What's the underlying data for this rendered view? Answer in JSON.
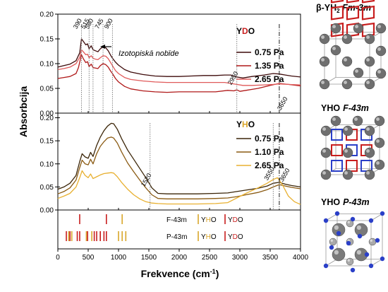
{
  "chart_data": {
    "type": "line",
    "xlabel_main": "Frekvence (cm",
    "xlabel_sup": "-1",
    "xlabel_close": ")",
    "ylabel": "Absorbcija",
    "xlim": [
      0,
      4000
    ],
    "x_ticks": [
      0,
      500,
      1000,
      1500,
      2000,
      2500,
      3000,
      3500,
      4000
    ],
    "top": {
      "ylim": [
        0,
        0.2
      ],
      "y_ticks": [
        "0.00",
        "0.05",
        "0.10",
        "0.15",
        "0.20"
      ],
      "legend_title": {
        "y": "Y",
        "d": "D",
        "o": "O"
      },
      "series": [
        {
          "name": "0.75 Pa",
          "color": "#3d0a0a",
          "x": [
            0,
            100,
            200,
            300,
            360,
            390,
            420,
            460,
            490,
            515,
            550,
            580,
            620,
            660,
            700,
            745,
            790,
            830,
            870,
            900,
            950,
            1000,
            1100,
            1200,
            1400,
            1600,
            1800,
            2000,
            2200,
            2400,
            2600,
            2750,
            2850,
            2950,
            3050,
            3200,
            3400,
            3550,
            3650,
            3750,
            3850,
            4000
          ],
          "y": [
            0.093,
            0.096,
            0.099,
            0.106,
            0.122,
            0.15,
            0.145,
            0.138,
            0.14,
            0.13,
            0.136,
            0.128,
            0.126,
            0.124,
            0.13,
            0.134,
            0.132,
            0.126,
            0.117,
            0.111,
            0.103,
            0.097,
            0.088,
            0.083,
            0.078,
            0.075,
            0.074,
            0.074,
            0.075,
            0.076,
            0.076,
            0.077,
            0.077,
            0.073,
            0.071,
            0.074,
            0.077,
            0.08,
            0.079,
            0.077,
            0.075,
            0.073
          ]
        },
        {
          "name": "1.35 Pa",
          "color": "#b01818",
          "x": [
            0,
            100,
            200,
            300,
            340,
            390,
            420,
            460,
            490,
            515,
            550,
            580,
            620,
            660,
            700,
            745,
            790,
            830,
            870,
            900,
            950,
            1000,
            1100,
            1200,
            1400,
            1600,
            1800,
            2000,
            2200,
            2400,
            2600,
            2800,
            2900,
            2950,
            3000,
            3100,
            3300,
            3500,
            3650,
            3800,
            4000
          ],
          "y": [
            0.07,
            0.072,
            0.074,
            0.08,
            0.092,
            0.118,
            0.11,
            0.102,
            0.104,
            0.094,
            0.099,
            0.092,
            0.091,
            0.09,
            0.096,
            0.1,
            0.098,
            0.093,
            0.085,
            0.08,
            0.07,
            0.063,
            0.054,
            0.049,
            0.045,
            0.043,
            0.042,
            0.043,
            0.043,
            0.043,
            0.043,
            0.046,
            0.045,
            0.047,
            0.044,
            0.046,
            0.05,
            0.056,
            0.06,
            0.058,
            0.055
          ]
        },
        {
          "name": "2.65 Pa",
          "color": "#e05a5a",
          "x": [
            0,
            100,
            200,
            300,
            360,
            390,
            420,
            460,
            490,
            515,
            550,
            580,
            620,
            660,
            700,
            745,
            790,
            830,
            870,
            900,
            950,
            1000,
            1100,
            1200,
            1400,
            1600,
            1800,
            2000,
            2200,
            2400,
            2600,
            2750,
            2850,
            2950,
            3050,
            3200,
            3400,
            3550,
            3650,
            3800,
            4000
          ],
          "y": [
            0.088,
            0.09,
            0.093,
            0.1,
            0.113,
            0.128,
            0.124,
            0.118,
            0.119,
            0.112,
            0.116,
            0.111,
            0.109,
            0.108,
            0.112,
            0.116,
            0.115,
            0.11,
            0.102,
            0.096,
            0.086,
            0.08,
            0.072,
            0.068,
            0.065,
            0.063,
            0.062,
            0.062,
            0.062,
            0.062,
            0.062,
            0.062,
            0.06,
            0.058,
            0.056,
            0.056,
            0.057,
            0.058,
            0.059,
            0.058,
            0.057
          ]
        }
      ],
      "peak_labels": [
        {
          "x": 390,
          "text": "390"
        },
        {
          "x": 515,
          "text": "515"
        },
        {
          "x": 580,
          "text": "580"
        },
        {
          "x": 745,
          "text": "745"
        },
        {
          "x": 900,
          "text": "900"
        },
        {
          "x": 2950,
          "text": "2950"
        },
        {
          "x": 3650,
          "text": "3650"
        }
      ],
      "annotation": "Izotopiskā nobīde"
    },
    "middle": {
      "ylim": [
        0,
        0.21
      ],
      "y_ticks": [
        "0.00",
        "0.05",
        "0.10",
        "0.15",
        "0.20"
      ],
      "legend_title": {
        "y": "Y",
        "h": "H",
        "o": "O"
      },
      "series": [
        {
          "name": "0.75 Pa",
          "color": "#3b2508",
          "x": [
            0,
            100,
            200,
            300,
            360,
            400,
            450,
            500,
            540,
            580,
            640,
            700,
            760,
            820,
            880,
            920,
            980,
            1050,
            1150,
            1250,
            1350,
            1450,
            1550,
            1650,
            1800,
            2000,
            2300,
            2600,
            2800,
            2950,
            3100,
            3300,
            3450,
            3550,
            3650,
            3750,
            3850,
            4000
          ],
          "y": [
            0.045,
            0.05,
            0.058,
            0.075,
            0.105,
            0.122,
            0.115,
            0.112,
            0.125,
            0.116,
            0.14,
            0.158,
            0.172,
            0.182,
            0.188,
            0.187,
            0.175,
            0.155,
            0.13,
            0.11,
            0.09,
            0.07,
            0.048,
            0.036,
            0.035,
            0.035,
            0.035,
            0.036,
            0.037,
            0.04,
            0.043,
            0.047,
            0.052,
            0.058,
            0.06,
            0.056,
            0.053,
            0.05
          ]
        },
        {
          "name": "1.10 Pa",
          "color": "#8a5a12",
          "x": [
            0,
            100,
            200,
            300,
            360,
            400,
            450,
            500,
            540,
            580,
            640,
            700,
            760,
            820,
            880,
            920,
            980,
            1050,
            1150,
            1250,
            1350,
            1450,
            1550,
            1650,
            1800,
            2000,
            2300,
            2600,
            2800,
            2950,
            3100,
            3300,
            3450,
            3550,
            3650,
            3750,
            3850,
            4000
          ],
          "y": [
            0.035,
            0.04,
            0.048,
            0.065,
            0.092,
            0.108,
            0.1,
            0.098,
            0.11,
            0.1,
            0.122,
            0.138,
            0.148,
            0.156,
            0.158,
            0.156,
            0.145,
            0.126,
            0.102,
            0.083,
            0.065,
            0.048,
            0.033,
            0.025,
            0.024,
            0.024,
            0.024,
            0.025,
            0.026,
            0.029,
            0.033,
            0.038,
            0.044,
            0.05,
            0.055,
            0.052,
            0.049,
            0.046
          ]
        },
        {
          "name": "2.65 Pa",
          "color": "#e8b030",
          "x": [
            0,
            100,
            200,
            300,
            360,
            400,
            450,
            500,
            540,
            580,
            640,
            700,
            760,
            820,
            880,
            920,
            980,
            1050,
            1150,
            1250,
            1350,
            1450,
            1550,
            1650,
            1800,
            2000,
            2300,
            2600,
            2800,
            2950,
            3100,
            3300,
            3450,
            3550,
            3620,
            3700,
            3800,
            3900,
            4000
          ],
          "y": [
            0.025,
            0.03,
            0.036,
            0.05,
            0.07,
            0.085,
            0.075,
            0.07,
            0.078,
            0.068,
            0.072,
            0.076,
            0.079,
            0.08,
            0.081,
            0.08,
            0.072,
            0.06,
            0.045,
            0.033,
            0.024,
            0.018,
            0.015,
            0.014,
            0.013,
            0.013,
            0.013,
            0.014,
            0.016,
            0.026,
            0.036,
            0.048,
            0.058,
            0.066,
            0.07,
            0.055,
            0.03,
            0.018,
            0.012
          ]
        }
      ],
      "peak_labels": [
        {
          "x": 1520,
          "text": "1520"
        },
        {
          "x": 3550,
          "text": "3550"
        },
        {
          "x": 3650,
          "text": "3650"
        }
      ]
    },
    "bottom": {
      "rows": [
        {
          "label": "F-43m",
          "yho_lines": [
            1060
          ],
          "ydo_lines": [
            360,
            800
          ]
        },
        {
          "label": "P-43m",
          "yho_lines": [
            180,
            230,
            470,
            560,
            700,
            1000,
            1060,
            1120
          ],
          "ydo_lines": [
            140,
            200,
            320,
            360,
            490,
            600,
            640,
            700,
            760,
            800
          ]
        }
      ],
      "legend_yho": {
        "y": "Y",
        "h": "H",
        "o": "O"
      },
      "legend_ydo": {
        "y": "Y",
        "d": "D",
        "o": "O"
      }
    },
    "structures": [
      {
        "formula_prefix": "β-YH",
        "formula_sub": "2",
        "space_group": "Fm-3m"
      },
      {
        "formula_prefix": "YHO",
        "formula_sub": "",
        "space_group": "F-43m"
      },
      {
        "formula_prefix": "YHO",
        "formula_sub": "",
        "space_group": "P-43m"
      }
    ],
    "colors": {
      "yho_line": "#d9a62a",
      "ydo_line": "#c81e1e",
      "y_letter_d": "#c81e1e",
      "h_letter": "#d9a62a",
      "dotted": "#777777",
      "dashdot": "#222222"
    }
  }
}
